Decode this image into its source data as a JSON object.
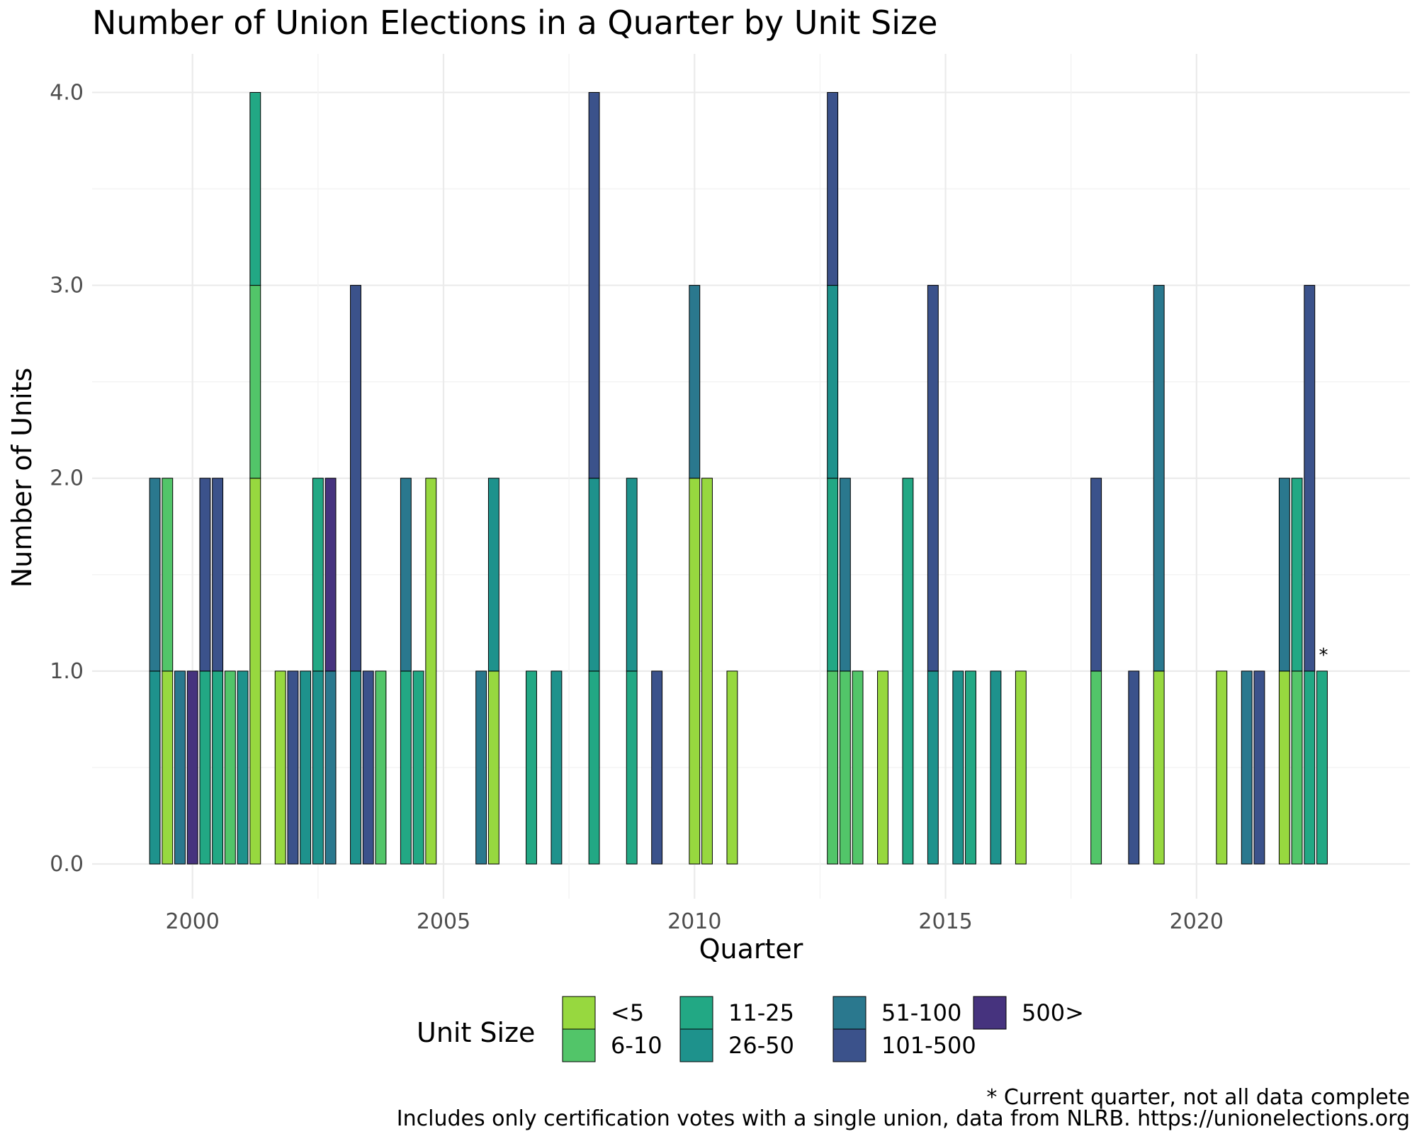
{
  "chart_data": {
    "type": "bar",
    "stacked": true,
    "title": "Number of Union Elections in a Quarter by Unit Size",
    "xlabel": "Quarter",
    "ylabel": "Number of Units",
    "xlim": [
      1998.0,
      2024.25
    ],
    "ylim": [
      -0.18,
      4.2
    ],
    "x_ticks": [
      2000,
      2005,
      2010,
      2015,
      2020
    ],
    "x_tick_labels": [
      "2000",
      "2005",
      "2010",
      "2015",
      "2020"
    ],
    "y_ticks": [
      0,
      1,
      2,
      3,
      4
    ],
    "y_tick_labels": [
      "0.0",
      "1.0",
      "2.0",
      "3.0",
      "4.0"
    ],
    "grid": true,
    "legend": {
      "title": "Unit Size",
      "placement": "bottom",
      "items": [
        {
          "label": "<5",
          "color": "#97d83f"
        },
        {
          "label": "6-10",
          "color": "#52c569"
        },
        {
          "label": "11-25",
          "color": "#22a884"
        },
        {
          "label": "26-50",
          "color": "#1e928c"
        },
        {
          "label": "51-100",
          "color": "#2a788e"
        },
        {
          "label": "101-500",
          "color": "#3b528b"
        },
        {
          "label": "500>",
          "color": "#46337e"
        }
      ]
    },
    "bar_width_years": 0.21,
    "bars": [
      {
        "x": 1999.25,
        "segments": [
          {
            "category": "26-50",
            "value": 1
          },
          {
            "category": "51-100",
            "value": 1
          }
        ]
      },
      {
        "x": 1999.5,
        "segments": [
          {
            "category": "<5",
            "value": 1
          },
          {
            "category": "6-10",
            "value": 1
          }
        ]
      },
      {
        "x": 1999.75,
        "segments": [
          {
            "category": "51-100",
            "value": 1
          }
        ]
      },
      {
        "x": 2000.0,
        "segments": [
          {
            "category": "500>",
            "value": 1
          }
        ]
      },
      {
        "x": 2000.25,
        "segments": [
          {
            "category": "11-25",
            "value": 1
          },
          {
            "category": "101-500",
            "value": 1
          }
        ]
      },
      {
        "x": 2000.5,
        "segments": [
          {
            "category": "11-25",
            "value": 1
          },
          {
            "category": "101-500",
            "value": 1
          }
        ]
      },
      {
        "x": 2000.75,
        "segments": [
          {
            "category": "6-10",
            "value": 1
          }
        ]
      },
      {
        "x": 2001.0,
        "segments": [
          {
            "category": "26-50",
            "value": 1
          }
        ]
      },
      {
        "x": 2001.25,
        "segments": [
          {
            "category": "<5",
            "value": 2
          },
          {
            "category": "6-10",
            "value": 1
          },
          {
            "category": "11-25",
            "value": 1
          }
        ]
      },
      {
        "x": 2001.75,
        "segments": [
          {
            "category": "<5",
            "value": 1
          }
        ]
      },
      {
        "x": 2002.0,
        "segments": [
          {
            "category": "101-500",
            "value": 1
          }
        ]
      },
      {
        "x": 2002.25,
        "segments": [
          {
            "category": "26-50",
            "value": 1
          }
        ]
      },
      {
        "x": 2002.5,
        "segments": [
          {
            "category": "26-50",
            "value": 1
          },
          {
            "category": "11-25",
            "value": 1
          }
        ]
      },
      {
        "x": 2002.75,
        "segments": [
          {
            "category": "51-100",
            "value": 1
          },
          {
            "category": "500>",
            "value": 1
          }
        ]
      },
      {
        "x": 2003.25,
        "segments": [
          {
            "category": "26-50",
            "value": 1
          },
          {
            "category": "101-500",
            "value": 2
          }
        ]
      },
      {
        "x": 2003.5,
        "segments": [
          {
            "category": "101-500",
            "value": 1
          }
        ]
      },
      {
        "x": 2003.75,
        "segments": [
          {
            "category": "6-10",
            "value": 1
          }
        ]
      },
      {
        "x": 2004.25,
        "segments": [
          {
            "category": "11-25",
            "value": 1
          },
          {
            "category": "51-100",
            "value": 1
          }
        ]
      },
      {
        "x": 2004.5,
        "segments": [
          {
            "category": "11-25",
            "value": 1
          }
        ]
      },
      {
        "x": 2004.75,
        "segments": [
          {
            "category": "<5",
            "value": 2
          }
        ]
      },
      {
        "x": 2005.75,
        "segments": [
          {
            "category": "51-100",
            "value": 1
          }
        ]
      },
      {
        "x": 2006.0,
        "segments": [
          {
            "category": "<5",
            "value": 1
          },
          {
            "category": "26-50",
            "value": 1
          }
        ]
      },
      {
        "x": 2006.75,
        "segments": [
          {
            "category": "11-25",
            "value": 1
          }
        ]
      },
      {
        "x": 2007.25,
        "segments": [
          {
            "category": "26-50",
            "value": 1
          }
        ]
      },
      {
        "x": 2008.0,
        "segments": [
          {
            "category": "11-25",
            "value": 1
          },
          {
            "category": "26-50",
            "value": 1
          },
          {
            "category": "101-500",
            "value": 2
          }
        ]
      },
      {
        "x": 2008.75,
        "segments": [
          {
            "category": "11-25",
            "value": 1
          },
          {
            "category": "26-50",
            "value": 1
          }
        ]
      },
      {
        "x": 2009.25,
        "segments": [
          {
            "category": "101-500",
            "value": 1
          }
        ]
      },
      {
        "x": 2010.0,
        "segments": [
          {
            "category": "<5",
            "value": 2
          },
          {
            "category": "51-100",
            "value": 1
          }
        ]
      },
      {
        "x": 2010.25,
        "segments": [
          {
            "category": "<5",
            "value": 2
          }
        ]
      },
      {
        "x": 2010.75,
        "segments": [
          {
            "category": "<5",
            "value": 1
          }
        ]
      },
      {
        "x": 2012.75,
        "segments": [
          {
            "category": "6-10",
            "value": 1
          },
          {
            "category": "11-25",
            "value": 1
          },
          {
            "category": "26-50",
            "value": 1
          },
          {
            "category": "101-500",
            "value": 1
          }
        ]
      },
      {
        "x": 2013.0,
        "segments": [
          {
            "category": "6-10",
            "value": 1
          },
          {
            "category": "51-100",
            "value": 1
          }
        ]
      },
      {
        "x": 2013.25,
        "segments": [
          {
            "category": "6-10",
            "value": 1
          }
        ]
      },
      {
        "x": 2013.75,
        "segments": [
          {
            "category": "<5",
            "value": 1
          }
        ]
      },
      {
        "x": 2014.25,
        "segments": [
          {
            "category": "11-25",
            "value": 2
          }
        ]
      },
      {
        "x": 2014.75,
        "segments": [
          {
            "category": "26-50",
            "value": 1
          },
          {
            "category": "101-500",
            "value": 2
          }
        ]
      },
      {
        "x": 2015.25,
        "segments": [
          {
            "category": "26-50",
            "value": 1
          }
        ]
      },
      {
        "x": 2015.5,
        "segments": [
          {
            "category": "11-25",
            "value": 1
          }
        ]
      },
      {
        "x": 2016.0,
        "segments": [
          {
            "category": "26-50",
            "value": 1
          }
        ]
      },
      {
        "x": 2016.5,
        "segments": [
          {
            "category": "<5",
            "value": 1
          }
        ]
      },
      {
        "x": 2018.0,
        "segments": [
          {
            "category": "6-10",
            "value": 1
          },
          {
            "category": "101-500",
            "value": 1
          }
        ]
      },
      {
        "x": 2018.75,
        "segments": [
          {
            "category": "101-500",
            "value": 1
          }
        ]
      },
      {
        "x": 2019.25,
        "segments": [
          {
            "category": "<5",
            "value": 1
          },
          {
            "category": "51-100",
            "value": 2
          }
        ]
      },
      {
        "x": 2020.5,
        "segments": [
          {
            "category": "<5",
            "value": 1
          }
        ]
      },
      {
        "x": 2021.0,
        "segments": [
          {
            "category": "51-100",
            "value": 1
          }
        ]
      },
      {
        "x": 2021.25,
        "segments": [
          {
            "category": "101-500",
            "value": 1
          }
        ]
      },
      {
        "x": 2021.75,
        "segments": [
          {
            "category": "<5",
            "value": 1
          },
          {
            "category": "51-100",
            "value": 1
          }
        ]
      },
      {
        "x": 2022.0,
        "segments": [
          {
            "category": "6-10",
            "value": 1
          },
          {
            "category": "11-25",
            "value": 1
          }
        ]
      },
      {
        "x": 2022.25,
        "segments": [
          {
            "category": "11-25",
            "value": 1
          },
          {
            "category": "101-500",
            "value": 2
          }
        ]
      },
      {
        "x": 2022.5,
        "segments": [
          {
            "category": "11-25",
            "value": 1
          }
        ]
      }
    ],
    "annotation": {
      "x": 2022.5,
      "y": 1.0,
      "text": "*"
    },
    "captions": [
      "* Current quarter, not all data complete",
      "Includes only certification votes with a single union, data from NLRB. https://unionelections.org"
    ]
  }
}
